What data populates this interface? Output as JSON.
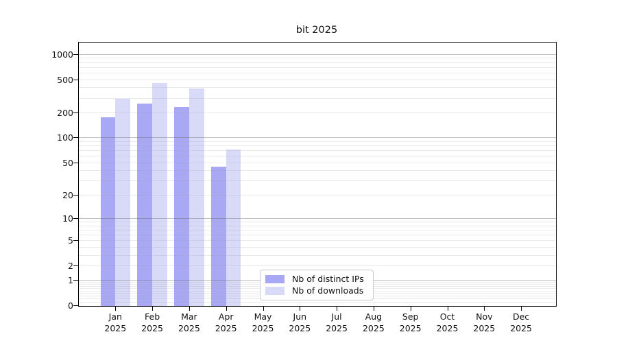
{
  "chart_data": {
    "type": "bar",
    "title": "bit 2025",
    "scale": "log1p",
    "ylim": [
      0,
      1400
    ],
    "y_ticks": [
      0,
      1,
      2,
      5,
      10,
      20,
      50,
      100,
      200,
      500,
      1000
    ],
    "x_tick_year": "2025",
    "categories": [
      "Jan",
      "Feb",
      "Mar",
      "Apr",
      "May",
      "Jun",
      "Jul",
      "Aug",
      "Sep",
      "Oct",
      "Nov",
      "Dec"
    ],
    "series": [
      {
        "name": "Nb of distinct IPs",
        "color": "#a8a8f5",
        "values": [
          180,
          260,
          235,
          45,
          null,
          null,
          null,
          null,
          null,
          null,
          null,
          null
        ]
      },
      {
        "name": "Nb of downloads",
        "color": "#d9d9f8",
        "values": [
          300,
          460,
          395,
          73,
          null,
          null,
          null,
          null,
          null,
          null,
          null,
          null
        ]
      }
    ],
    "legend_position": "inside-bottom-center",
    "grid": {
      "major": true,
      "minor": true
    },
    "xlabel": "",
    "ylabel": ""
  }
}
